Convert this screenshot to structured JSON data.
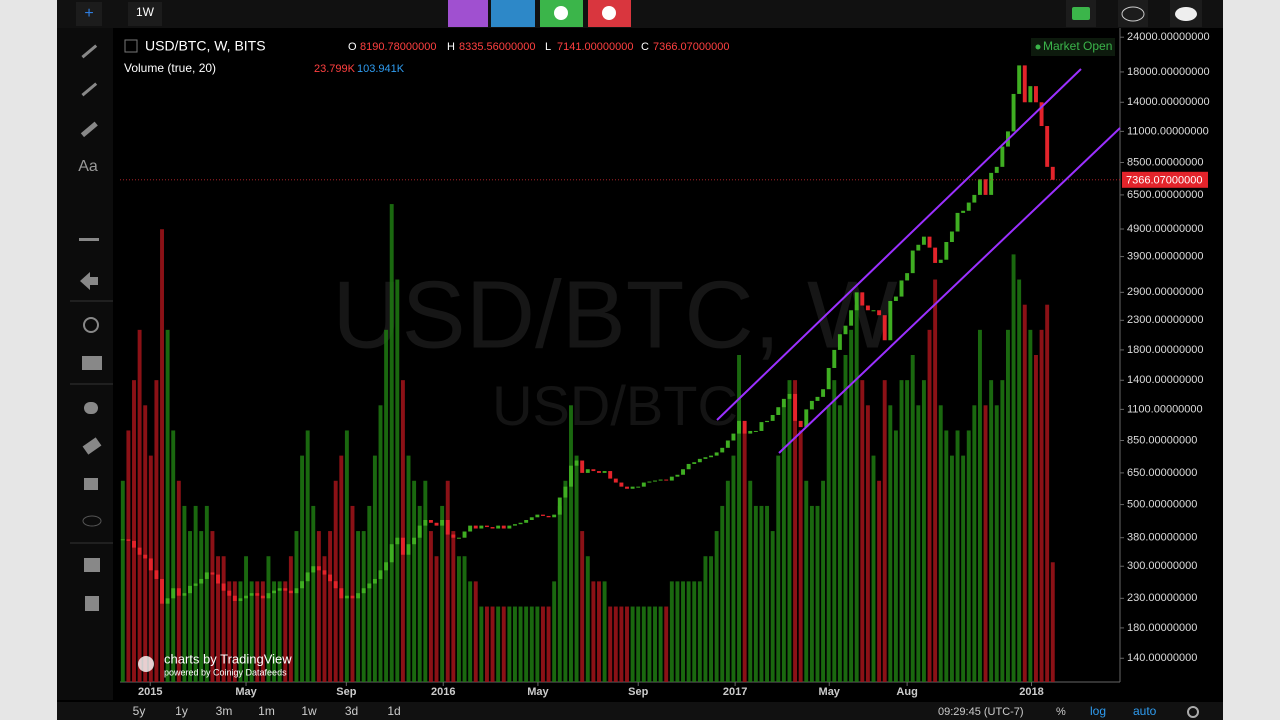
{
  "toolbar": {
    "interval": "1W"
  },
  "legend": {
    "symbol": "USD/BTC, W, BITS",
    "o_label": "O",
    "o": "8190.78000000",
    "h_label": "H",
    "h": "8335.56000000",
    "l_label": "L",
    "l": "7141.00000000",
    "c_label": "C",
    "c": "7366.07000000",
    "volume": "Volume (true, 20)",
    "vol1": "23.799K",
    "vol2": "103.941K",
    "market": "Market Open"
  },
  "watermark": {
    "big": "USD/BTC, W",
    "small": "USD/BTC"
  },
  "branding": {
    "main": "charts by TradingView",
    "sub": "powered by Coinigy Datafeeds"
  },
  "bottom_bar": {
    "ranges": [
      "5y",
      "1y",
      "3m",
      "1m",
      "1w",
      "3d",
      "1d"
    ],
    "time": "09:29:45 (UTC-7)",
    "percent": "%",
    "log": "log",
    "auto": "auto"
  },
  "chart_data": {
    "type": "candlestick",
    "title": "USD/BTC, W, BITS",
    "log_scale": true,
    "grid": false,
    "up_color": "#3fae22",
    "down_color": "#e3242b",
    "volume_up_color": "#1f7a12",
    "volume_down_color": "#a3141a",
    "values": [
      375,
      370,
      350,
      330,
      320,
      290,
      270,
      220,
      230,
      250,
      235,
      240,
      255,
      260,
      270,
      285,
      280,
      260,
      245,
      235,
      225,
      230,
      235,
      240,
      235,
      230,
      240,
      245,
      250,
      245,
      240,
      250,
      265,
      285,
      300,
      290,
      280,
      265,
      250,
      230,
      235,
      230,
      240,
      250,
      260,
      270,
      290,
      310,
      360,
      380,
      330,
      360,
      380,
      420,
      440,
      430,
      420,
      440,
      390,
      380,
      380,
      400,
      420,
      410,
      420,
      415,
      410,
      420,
      410,
      420,
      425,
      430,
      440,
      450,
      460,
      455,
      450,
      460,
      530,
      580,
      690,
      720,
      650,
      670,
      660,
      650,
      660,
      620,
      600,
      580,
      570,
      580,
      580,
      600,
      605,
      610,
      615,
      610,
      630,
      640,
      670,
      700,
      710,
      730,
      740,
      750,
      770,
      800,
      850,
      900,
      1000,
      900,
      920,
      920,
      990,
      1000,
      1050,
      1120,
      1200,
      1250,
      1000,
      950,
      1100,
      1180,
      1220,
      1300,
      1550,
      1800,
      2050,
      2200,
      2500,
      2900,
      2600,
      2500,
      2500,
      2400,
      1950,
      2700,
      2800,
      3200,
      3400,
      4100,
      4300,
      4600,
      4200,
      3700,
      3800,
      4400,
      4800,
      5600,
      5700,
      6100,
      6500,
      7400,
      6500,
      7800,
      8200,
      9700,
      11000,
      15000,
      19000,
      14000,
      16000,
      14000,
      11500,
      8200,
      7366
    ],
    "volumes": [
      40,
      50,
      60,
      70,
      55,
      45,
      60,
      90,
      70,
      50,
      40,
      35,
      30,
      35,
      30,
      35,
      30,
      25,
      25,
      20,
      20,
      20,
      25,
      20,
      20,
      20,
      25,
      20,
      20,
      20,
      25,
      30,
      45,
      50,
      35,
      30,
      25,
      30,
      40,
      45,
      50,
      35,
      30,
      30,
      35,
      45,
      55,
      70,
      95,
      80,
      60,
      45,
      40,
      35,
      40,
      30,
      25,
      35,
      40,
      30,
      25,
      25,
      20,
      20,
      15,
      15,
      15,
      15,
      15,
      15,
      15,
      15,
      15,
      15,
      15,
      15,
      15,
      20,
      35,
      40,
      55,
      45,
      30,
      25,
      20,
      20,
      20,
      15,
      15,
      15,
      15,
      15,
      15,
      15,
      15,
      15,
      15,
      15,
      20,
      20,
      20,
      20,
      20,
      20,
      25,
      25,
      30,
      35,
      40,
      45,
      65,
      50,
      40,
      35,
      35,
      35,
      30,
      45,
      55,
      60,
      60,
      50,
      40,
      35,
      35,
      40,
      55,
      60,
      55,
      65,
      70,
      75,
      60,
      55,
      45,
      40,
      60,
      55,
      50,
      60,
      60,
      65,
      55,
      60,
      70,
      80,
      55,
      50,
      45,
      50,
      45,
      50,
      55,
      70,
      55,
      60,
      55,
      60,
      70,
      85,
      80,
      75,
      70,
      65,
      70,
      75,
      23.799
    ],
    "volume_lim": [
      0,
      130
    ],
    "last_label": "7366.07000000",
    "xlim": [
      -0.5,
      178
    ],
    "xticks": [
      {
        "value": 4.9,
        "label": "2015"
      },
      {
        "value": 22,
        "label": "May"
      },
      {
        "value": 39.9,
        "label": "Sep"
      },
      {
        "value": 57.2,
        "label": "2016"
      },
      {
        "value": 74.1,
        "label": "May"
      },
      {
        "value": 92,
        "label": "Sep"
      },
      {
        "value": 109.3,
        "label": "2017"
      },
      {
        "value": 126.1,
        "label": "May"
      },
      {
        "value": 140,
        "label": "Aug"
      },
      {
        "value": 162.2,
        "label": "2018"
      }
    ],
    "ylim": [
      115,
      25900
    ],
    "yticks": [
      {
        "value": 24000,
        "label": "24000.00000000"
      },
      {
        "value": 18000,
        "label": "18000.00000000"
      },
      {
        "value": 14000,
        "label": "14000.00000000"
      },
      {
        "value": 11000,
        "label": "11000.00000000"
      },
      {
        "value": 8500,
        "label": "8500.00000000"
      },
      {
        "value": 6500,
        "label": "6500.00000000"
      },
      {
        "value": 4900,
        "label": "4900.00000000"
      },
      {
        "value": 3900,
        "label": "3900.00000000"
      },
      {
        "value": 2900,
        "label": "2900.00000000"
      },
      {
        "value": 2300,
        "label": "2300.00000000"
      },
      {
        "value": 1800,
        "label": "1800.00000000"
      },
      {
        "value": 1400,
        "label": "1400.00000000"
      },
      {
        "value": 1100,
        "label": "1100.00000000"
      },
      {
        "value": 850,
        "label": "850.00000000"
      },
      {
        "value": 650,
        "label": "650.00000000"
      },
      {
        "value": 500,
        "label": "500.00000000"
      },
      {
        "value": 380,
        "label": "380.00000000"
      },
      {
        "value": 300,
        "label": "300.00000000"
      },
      {
        "value": 230,
        "label": "230.00000000"
      },
      {
        "value": 180,
        "label": "180.00000000"
      },
      {
        "value": 140,
        "label": "140.00000000"
      }
    ]
  }
}
